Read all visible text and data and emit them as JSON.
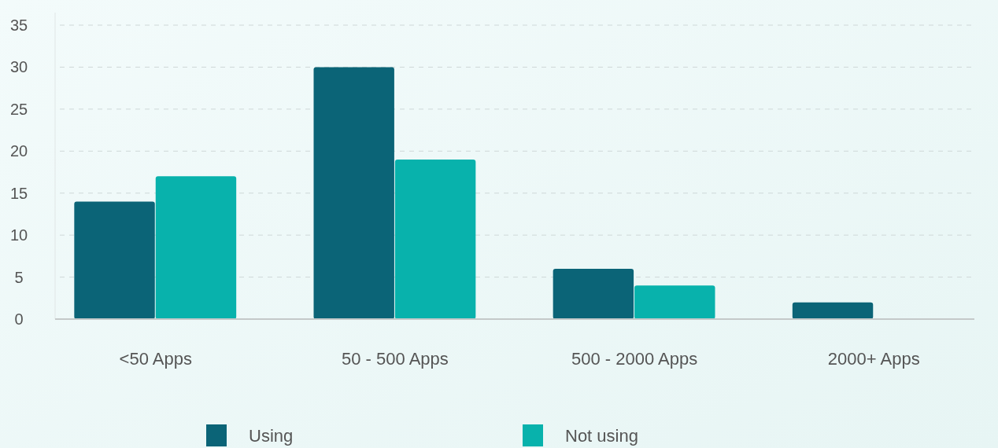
{
  "chart_data": {
    "type": "bar",
    "categories": [
      "<50 Apps",
      "50 - 500 Apps",
      "500 - 2000 Apps",
      "2000+ Apps"
    ],
    "series": [
      {
        "name": "Using",
        "color": "#0b6477",
        "values": [
          14,
          30,
          6,
          2
        ]
      },
      {
        "name": "Not using",
        "color": "#08b2ac",
        "values": [
          17,
          19,
          4,
          0
        ]
      }
    ],
    "ylim": [
      0,
      35
    ],
    "yticks": [
      0,
      5,
      10,
      15,
      20,
      25,
      30,
      35
    ],
    "grid": "y",
    "legend": "bottom"
  }
}
